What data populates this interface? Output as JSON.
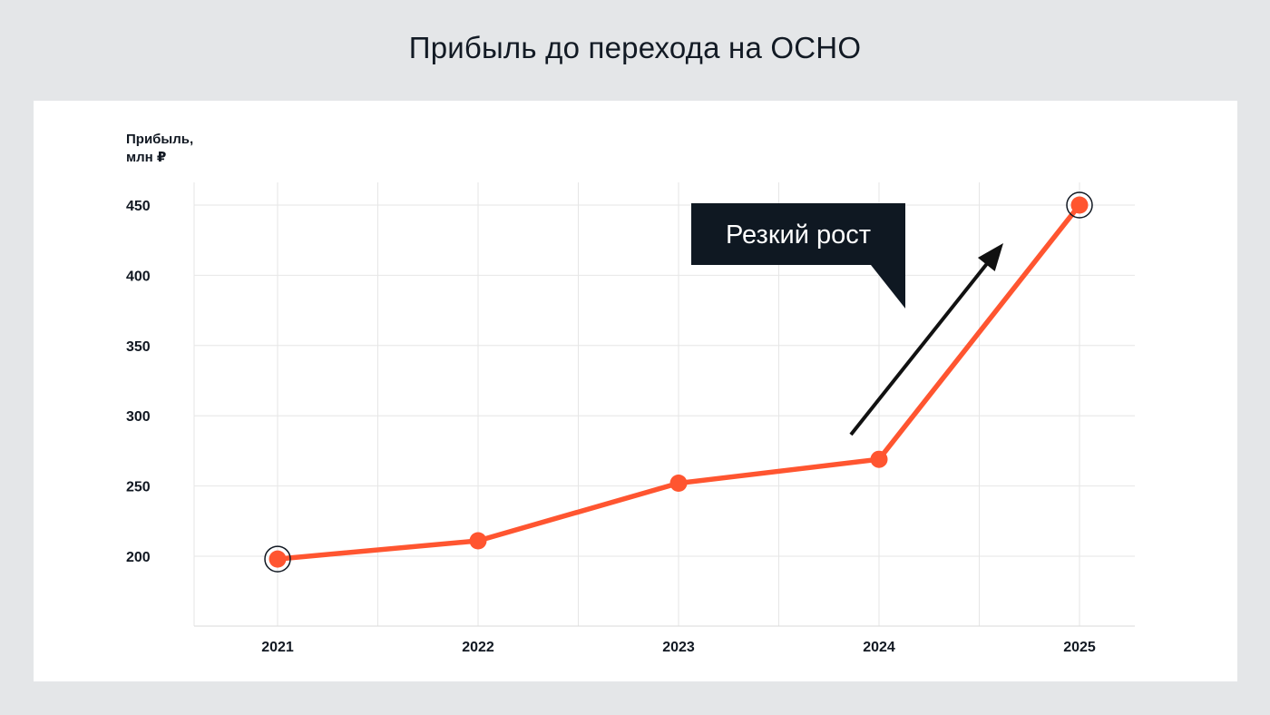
{
  "page": {
    "title": "Прибыль до перехода на ОСНО"
  },
  "colors": {
    "background": "#e4e6e8",
    "card": "#ffffff",
    "line": "#ff5530",
    "grid": "#e6e6e6",
    "text": "#111822",
    "callout": "#0f1822"
  },
  "chart_data": {
    "type": "line",
    "title": "Прибыль до перехода на ОСНО",
    "ylabel_line1": "Прибыль,",
    "ylabel_line2": "млн ₽",
    "xlabel": "",
    "categories": [
      "2021",
      "2022",
      "2023",
      "2024",
      "2025"
    ],
    "series": [
      {
        "values": [
          198,
          211,
          252,
          269,
          450
        ]
      }
    ],
    "yticks": [
      200,
      250,
      300,
      350,
      400,
      450
    ],
    "ylim": [
      150,
      465
    ],
    "grid": true,
    "highlighted_points": [
      "2021",
      "2025"
    ],
    "annotation": {
      "text": "Резкий рост",
      "arrow": "from 2024 toward 2025, pointing up"
    }
  }
}
